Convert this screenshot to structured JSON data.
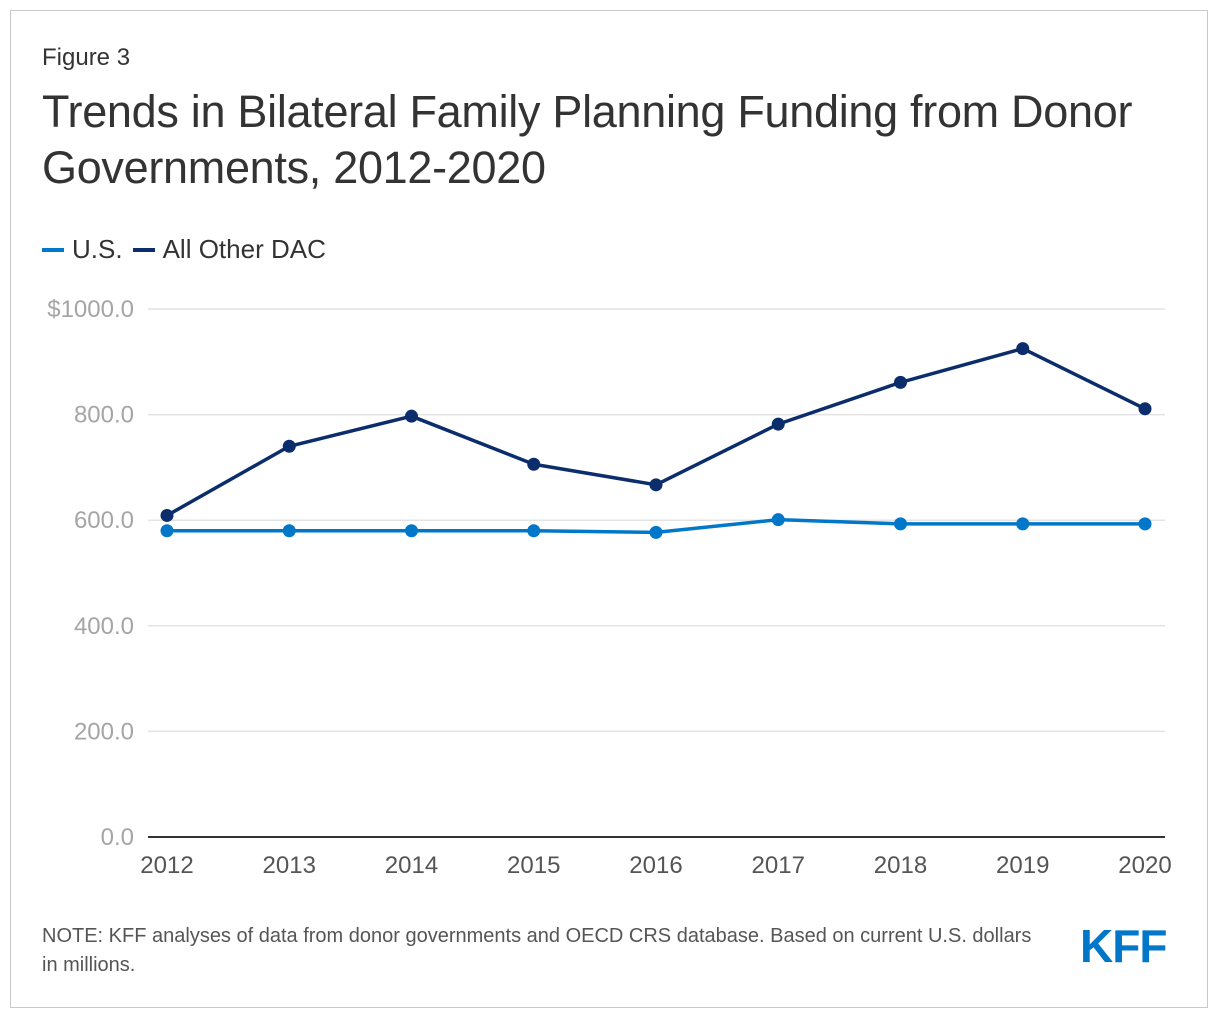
{
  "figure_label": "Figure 3",
  "note": "NOTE: KFF analyses of data from donor governments and OECD CRS database. Based on current U.S. dollars in millions.",
  "logo_text": "KFF",
  "colors": {
    "us": "#0077c8",
    "other": "#0c2d6b",
    "grid": "#e3e3e3",
    "axis": "#333333",
    "tick": "#a5a5a5"
  },
  "chart_data": {
    "type": "line",
    "title": "Trends in Bilateral Family Planning Funding from Donor Governments, 2012-2020",
    "xlabel": "",
    "ylabel": "",
    "categories": [
      "2012",
      "2013",
      "2014",
      "2015",
      "2016",
      "2017",
      "2018",
      "2019",
      "2020"
    ],
    "y_ticks": [
      0,
      200,
      400,
      600,
      800,
      1000
    ],
    "y_tick_labels": [
      "0.0",
      "200.0",
      "400.0",
      "600.0",
      "800.0",
      "$1000.0"
    ],
    "ylim": [
      0,
      1000
    ],
    "legend_position": "top-left",
    "series": [
      {
        "name": "U.S.",
        "values": [
          580,
          580,
          580,
          580,
          577,
          601,
          593,
          593,
          593
        ]
      },
      {
        "name": "All Other DAC",
        "values": [
          609,
          740,
          797,
          706,
          667,
          782,
          861,
          925,
          811
        ]
      }
    ]
  }
}
